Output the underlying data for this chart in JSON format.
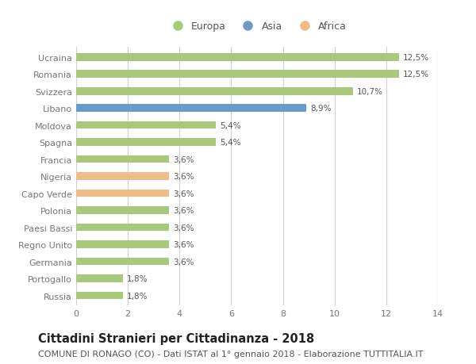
{
  "countries": [
    "Ucraina",
    "Romania",
    "Svizzera",
    "Libano",
    "Moldova",
    "Spagna",
    "Francia",
    "Nigeria",
    "Capo Verde",
    "Polonia",
    "Paesi Bassi",
    "Regno Unito",
    "Germania",
    "Portogallo",
    "Russia"
  ],
  "values": [
    12.5,
    12.5,
    10.7,
    8.9,
    5.4,
    5.4,
    3.6,
    3.6,
    3.6,
    3.6,
    3.6,
    3.6,
    3.6,
    1.8,
    1.8
  ],
  "continents": [
    "Europa",
    "Europa",
    "Europa",
    "Asia",
    "Europa",
    "Europa",
    "Europa",
    "Africa",
    "Africa",
    "Europa",
    "Europa",
    "Europa",
    "Europa",
    "Europa",
    "Europa"
  ],
  "colors": {
    "Europa": "#a8c87a",
    "Asia": "#6b9bc9",
    "Africa": "#f0bc87"
  },
  "legend_items": [
    "Europa",
    "Asia",
    "Africa"
  ],
  "xlim": [
    0,
    14
  ],
  "xticks": [
    0,
    2,
    4,
    6,
    8,
    10,
    12,
    14
  ],
  "title": "Cittadini Stranieri per Cittadinanza - 2018",
  "subtitle": "COMUNE DI RONAGO (CO) - Dati ISTAT al 1° gennaio 2018 - Elaborazione TUTTITALIA.IT",
  "title_fontsize": 10.5,
  "subtitle_fontsize": 8,
  "bar_label_fontsize": 7.5,
  "tick_fontsize": 8,
  "legend_fontsize": 9,
  "background_color": "#ffffff",
  "grid_color": "#d0d0d0",
  "bar_height": 0.45
}
